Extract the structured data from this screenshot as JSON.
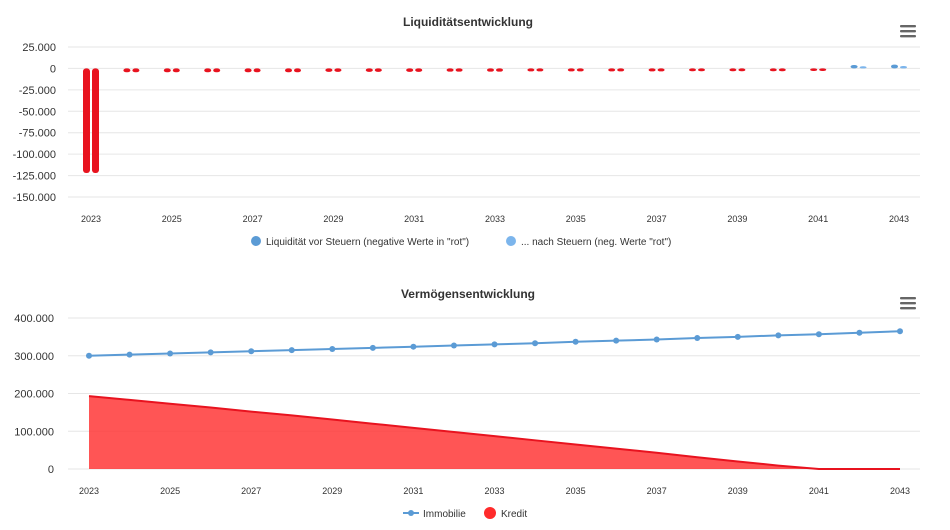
{
  "colors": {
    "liq_vor": "#5b9bd5",
    "liq_nach": "#7cb5ec",
    "negative": "#e8131f",
    "immobilie": "#5b9bd5",
    "kredit": "#ff2b2b",
    "grid": "#e6e6e6",
    "text": "#333333"
  },
  "icons": {
    "menu": "hamburger-menu-icon"
  },
  "chart_data": [
    {
      "type": "bar",
      "title": "Liquiditätsentwicklung",
      "categories": [
        "2023",
        "2024",
        "2025",
        "2026",
        "2027",
        "2028",
        "2029",
        "2030",
        "2031",
        "2032",
        "2033",
        "2034",
        "2035",
        "2036",
        "2037",
        "2038",
        "2039",
        "2040",
        "2041",
        "2042",
        "2043"
      ],
      "x_tick_labels": [
        "2023",
        "2025",
        "2027",
        "2029",
        "2031",
        "2033",
        "2035",
        "2037",
        "2039",
        "2041",
        "2043"
      ],
      "y_tick_labels": [
        "25.000",
        "0",
        "-25.000",
        "-50.000",
        "-75.000",
        "-100.000",
        "-125.000",
        "-150.000"
      ],
      "y_ticks": [
        25000,
        0,
        -25000,
        -50000,
        -75000,
        -100000,
        -125000,
        -150000
      ],
      "ylim": [
        -150000,
        25000
      ],
      "negative_color_rule": "negative values drawn in red",
      "series": [
        {
          "name": "Liquidität vor Steuern (negative Werte in \"rot\")",
          "values": [
            -122000,
            -4500,
            -4500,
            -4500,
            -4500,
            -4500,
            -4000,
            -4000,
            -4000,
            -3800,
            -3800,
            -3500,
            -3500,
            -3500,
            -3500,
            -3300,
            -3300,
            -3300,
            -3000,
            4000,
            4500
          ]
        },
        {
          "name": "... nach Steuern (neg. Werte \"rot\")",
          "values": [
            -122000,
            -4500,
            -4500,
            -4500,
            -4500,
            -4500,
            -4000,
            -4000,
            -4000,
            -3800,
            -3800,
            -3500,
            -3500,
            -3500,
            -3500,
            -3300,
            -3300,
            -3300,
            -3000,
            2500,
            2800
          ]
        }
      ],
      "grid": true,
      "legend_position": "bottom-center"
    },
    {
      "type": "line",
      "title": "Vermögensentwicklung",
      "x": [
        "2023",
        "2024",
        "2025",
        "2026",
        "2027",
        "2028",
        "2029",
        "2030",
        "2031",
        "2032",
        "2033",
        "2034",
        "2035",
        "2036",
        "2037",
        "2038",
        "2039",
        "2040",
        "2041",
        "2042",
        "2043"
      ],
      "x_tick_labels": [
        "2023",
        "2025",
        "2027",
        "2029",
        "2031",
        "2033",
        "2035",
        "2037",
        "2039",
        "2041",
        "2043"
      ],
      "y_tick_labels": [
        "400.000",
        "300.000",
        "200.000",
        "100.000",
        "0"
      ],
      "y_ticks": [
        400000,
        300000,
        200000,
        100000,
        0
      ],
      "ylim": [
        0,
        400000
      ],
      "series": [
        {
          "name": "Immobilie",
          "type": "line",
          "values": [
            300000,
            303000,
            306000,
            309000,
            312000,
            315000,
            318000,
            321000,
            324000,
            327000,
            330000,
            333000,
            337000,
            340000,
            343000,
            347000,
            350000,
            354000,
            357000,
            361000,
            365000
          ]
        },
        {
          "name": "Kredit",
          "type": "area",
          "values": [
            193000,
            183000,
            173000,
            163000,
            152000,
            142000,
            131000,
            120000,
            109000,
            98000,
            87000,
            76000,
            65000,
            54000,
            43000,
            31000,
            20000,
            9000,
            0,
            0,
            0
          ]
        }
      ],
      "grid": true,
      "legend_position": "bottom-center"
    }
  ]
}
